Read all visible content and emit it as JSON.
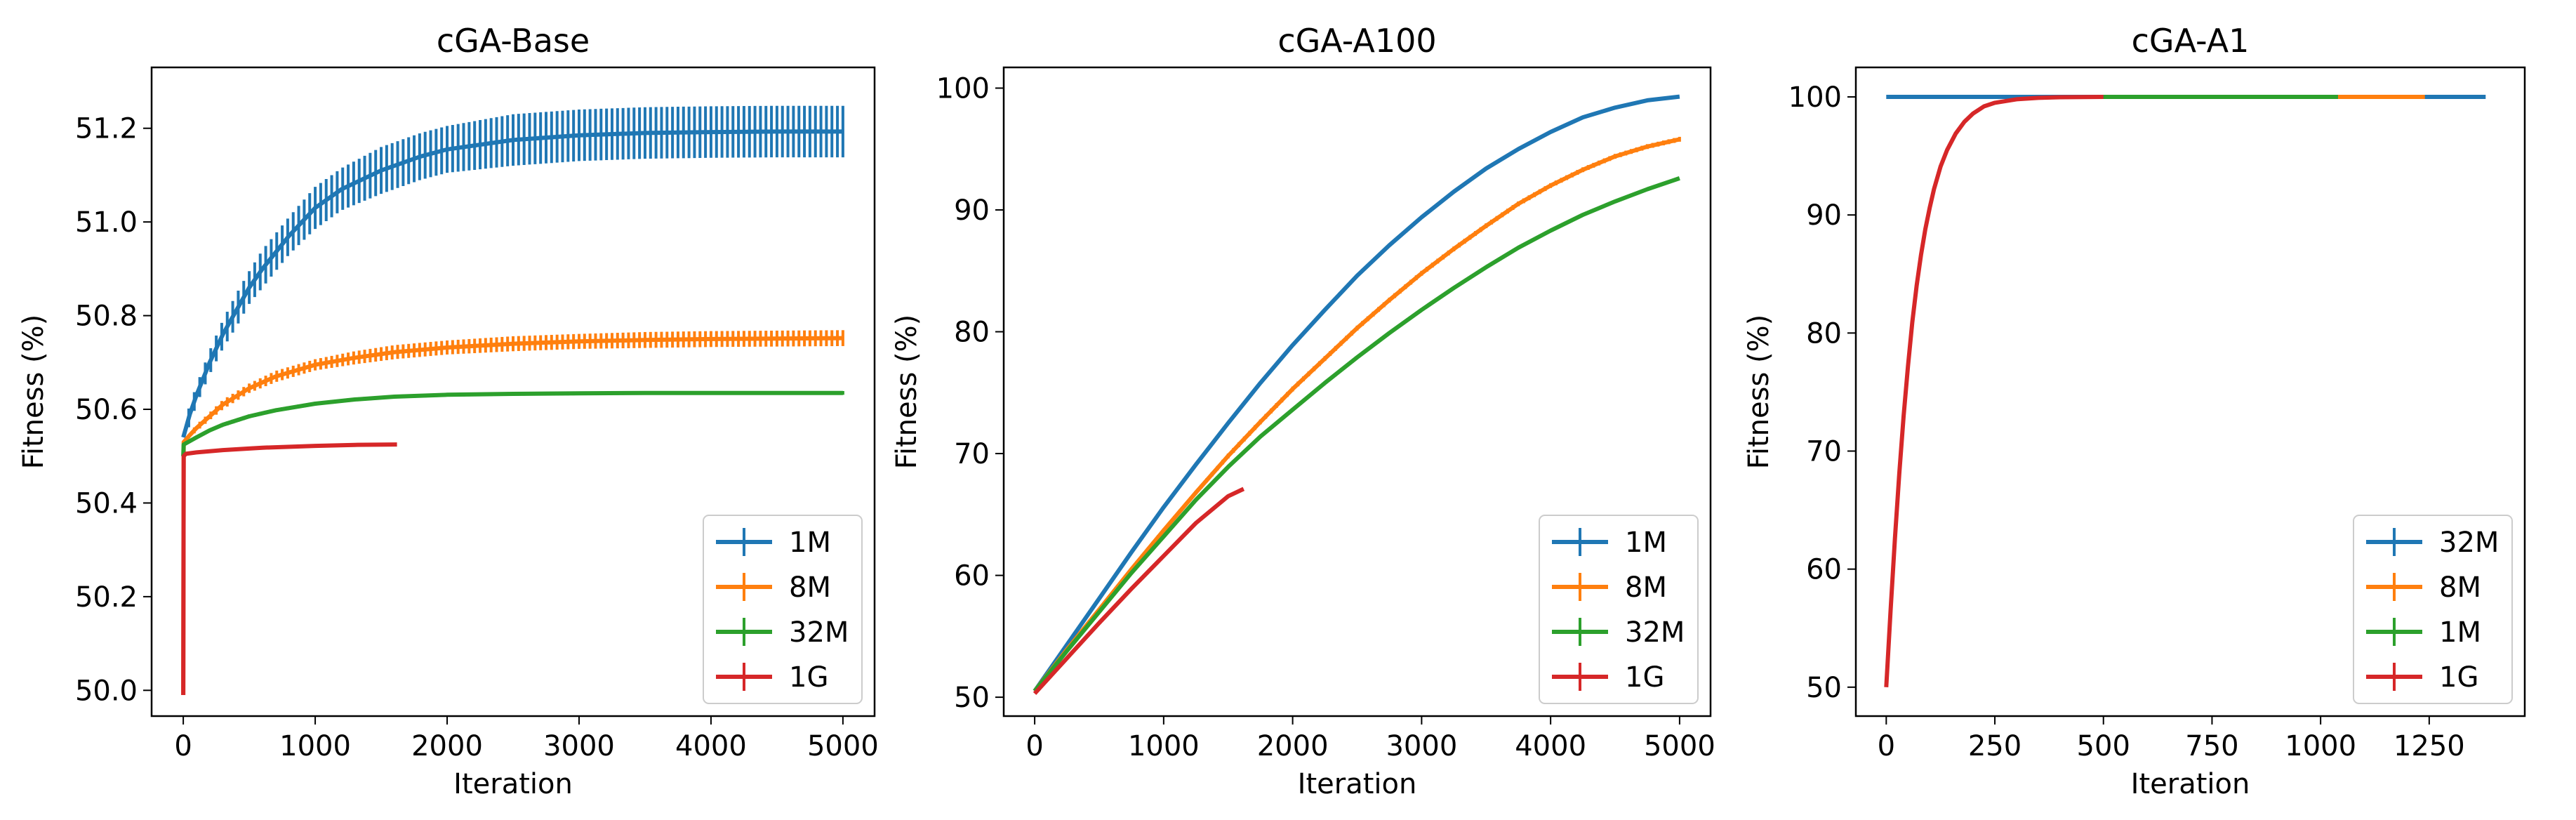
{
  "figure": {
    "panels": 3
  },
  "colors": {
    "blue": "#1f77b4",
    "orange": "#ff7f0e",
    "green": "#2ca02c",
    "red": "#d62728"
  },
  "chart_data": [
    {
      "type": "line",
      "title": "cGA-Base",
      "xlabel": "Iteration",
      "ylabel": "Fitness (%)",
      "xlim": [
        -240,
        5240
      ],
      "ylim": [
        49.945,
        51.33
      ],
      "xticks": [
        0,
        1000,
        2000,
        3000,
        4000,
        5000
      ],
      "xtick_labels": [
        "0",
        "1000",
        "2000",
        "3000",
        "4000",
        "5000"
      ],
      "yticks": [
        50.0,
        50.2,
        50.4,
        50.6,
        50.8,
        51.0,
        51.2
      ],
      "ytick_labels": [
        "50.0",
        "50.2",
        "50.4",
        "50.6",
        "50.8",
        "51.0",
        "51.2"
      ],
      "legend_position": "lower right",
      "series": [
        {
          "name": "1M",
          "color": "#1f77b4",
          "x": [
            0,
            20,
            50,
            100,
            200,
            300,
            400,
            500,
            600,
            800,
            1000,
            1200,
            1500,
            1800,
            2000,
            2500,
            3000,
            3500,
            4000,
            4500,
            5000
          ],
          "y": [
            50.54,
            50.56,
            50.59,
            50.63,
            50.7,
            50.76,
            50.81,
            50.86,
            50.9,
            50.97,
            51.03,
            51.07,
            51.11,
            51.14,
            51.155,
            51.175,
            51.185,
            51.19,
            51.192,
            51.193,
            51.193
          ],
          "err": [
            0.0,
            0.02,
            0.02,
            0.02,
            0.025,
            0.03,
            0.035,
            0.035,
            0.04,
            0.04,
            0.045,
            0.045,
            0.05,
            0.05,
            0.05,
            0.055,
            0.055,
            0.055,
            0.055,
            0.055,
            0.055
          ]
        },
        {
          "name": "8M",
          "color": "#ff7f0e",
          "x": [
            0,
            3,
            50,
            100,
            200,
            300,
            500,
            700,
            1000,
            1300,
            1600,
            2000,
            2500,
            3000,
            3500,
            4000,
            4500,
            5000
          ],
          "y": [
            49.99,
            50.53,
            50.545,
            50.56,
            50.585,
            50.61,
            50.645,
            50.67,
            50.695,
            50.71,
            50.722,
            50.732,
            50.74,
            50.745,
            50.748,
            50.75,
            50.751,
            50.752
          ],
          "err": [
            0.0,
            0.0,
            0.005,
            0.007,
            0.008,
            0.01,
            0.01,
            0.012,
            0.012,
            0.014,
            0.015,
            0.015,
            0.016,
            0.016,
            0.017,
            0.017,
            0.017,
            0.017
          ]
        },
        {
          "name": "32M",
          "color": "#2ca02c",
          "x": [
            0,
            3,
            100,
            200,
            300,
            500,
            700,
            1000,
            1300,
            1600,
            2000,
            2500,
            3000,
            3500,
            4000,
            4500,
            5000
          ],
          "y": [
            50.5,
            50.525,
            50.54,
            50.555,
            50.567,
            50.585,
            50.598,
            50.612,
            50.621,
            50.627,
            50.631,
            50.633,
            50.634,
            50.635,
            50.635,
            50.635,
            50.635
          ],
          "err": [
            0.0,
            0.0,
            0.003,
            0.003,
            0.004,
            0.004,
            0.004,
            0.004,
            0.004,
            0.004,
            0.004,
            0.004,
            0.004,
            0.004,
            0.004,
            0.004,
            0.004
          ]
        },
        {
          "name": "1G",
          "color": "#d62728",
          "x": [
            0,
            3,
            20,
            100,
            300,
            600,
            1000,
            1300,
            1620
          ],
          "y": [
            49.99,
            50.5,
            50.505,
            50.508,
            50.513,
            50.518,
            50.522,
            50.524,
            50.525
          ],
          "err": [
            0.0,
            0.0,
            0.0,
            0.0,
            0.0,
            0.0,
            0.0,
            0.0,
            0.0
          ]
        }
      ]
    },
    {
      "type": "line",
      "title": "cGA-A100",
      "xlabel": "Iteration",
      "ylabel": "Fitness (%)",
      "xlim": [
        -240,
        5240
      ],
      "ylim": [
        48.45,
        101.7
      ],
      "xticks": [
        0,
        1000,
        2000,
        3000,
        4000,
        5000
      ],
      "xtick_labels": [
        "0",
        "1000",
        "2000",
        "3000",
        "4000",
        "5000"
      ],
      "yticks": [
        50,
        60,
        70,
        80,
        90,
        100
      ],
      "ytick_labels": [
        "50",
        "60",
        "70",
        "80",
        "90",
        "100"
      ],
      "legend_position": "lower right",
      "series": [
        {
          "name": "1M",
          "color": "#1f77b4",
          "x": [
            0,
            250,
            500,
            750,
            1000,
            1250,
            1500,
            1750,
            2000,
            2250,
            2500,
            2750,
            3000,
            3250,
            3500,
            3750,
            4000,
            4250,
            4500,
            4750,
            5000
          ],
          "y": [
            50.5,
            54.3,
            58.1,
            61.9,
            65.6,
            69.1,
            72.5,
            75.8,
            78.9,
            81.8,
            84.6,
            87.1,
            89.4,
            91.5,
            93.4,
            95.0,
            96.4,
            97.6,
            98.4,
            99.0,
            99.3
          ],
          "err": [
            0,
            0,
            0,
            0,
            0,
            0,
            0,
            0,
            0,
            0,
            0,
            0,
            0,
            0,
            0,
            0,
            0,
            0,
            0,
            0,
            0
          ]
        },
        {
          "name": "8M",
          "color": "#ff7f0e",
          "x": [
            0,
            250,
            500,
            750,
            1000,
            1250,
            1500,
            1750,
            2000,
            2250,
            2500,
            2750,
            3000,
            3250,
            3500,
            3750,
            4000,
            4250,
            4500,
            4750,
            5000
          ],
          "y": [
            50.5,
            53.9,
            57.2,
            60.5,
            63.7,
            66.8,
            69.8,
            72.6,
            75.3,
            77.8,
            80.3,
            82.6,
            84.8,
            86.8,
            88.7,
            90.5,
            92.0,
            93.3,
            94.4,
            95.2,
            95.8
          ],
          "err": [
            0,
            0.1,
            0.1,
            0.15,
            0.15,
            0.15,
            0.2,
            0.2,
            0.2,
            0.2,
            0.2,
            0.2,
            0.2,
            0.2,
            0.2,
            0.2,
            0.2,
            0.2,
            0.2,
            0.2,
            0.2
          ]
        },
        {
          "name": "32M",
          "color": "#2ca02c",
          "x": [
            0,
            250,
            500,
            750,
            1000,
            1250,
            1500,
            1750,
            2000,
            2250,
            2500,
            2750,
            3000,
            3250,
            3500,
            3750,
            4000,
            4250,
            4500,
            4750,
            5000
          ],
          "y": [
            50.5,
            53.8,
            57.0,
            60.2,
            63.2,
            66.2,
            68.9,
            71.4,
            73.6,
            75.8,
            77.9,
            79.9,
            81.8,
            83.6,
            85.3,
            86.9,
            88.3,
            89.6,
            90.7,
            91.7,
            92.6
          ],
          "err": [
            0,
            0,
            0,
            0,
            0,
            0,
            0,
            0,
            0,
            0,
            0,
            0,
            0,
            0,
            0,
            0,
            0,
            0,
            0,
            0,
            0
          ]
        },
        {
          "name": "1G",
          "color": "#d62728",
          "x": [
            0,
            250,
            500,
            750,
            1000,
            1250,
            1500,
            1620
          ],
          "y": [
            50.3,
            53.2,
            56.1,
            58.9,
            61.6,
            64.3,
            66.5,
            67.1
          ],
          "err": [
            0,
            0,
            0,
            0,
            0,
            0,
            0,
            0
          ]
        }
      ]
    },
    {
      "type": "line",
      "title": "cGA-A1",
      "xlabel": "Iteration",
      "ylabel": "Fitness (%)",
      "xlim": [
        -70,
        1470
      ],
      "ylim": [
        47.55,
        102.5
      ],
      "xticks": [
        0,
        250,
        500,
        750,
        1000,
        1250
      ],
      "xtick_labels": [
        "0",
        "250",
        "500",
        "750",
        "1000",
        "1250"
      ],
      "yticks": [
        50,
        60,
        70,
        80,
        90,
        100
      ],
      "ytick_labels": [
        "50",
        "60",
        "70",
        "80",
        "90",
        "100"
      ],
      "legend_position": "lower right",
      "series": [
        {
          "name": "32M",
          "color": "#1f77b4",
          "x": [
            0,
            1240,
            1380
          ],
          "y": [
            100,
            100,
            100
          ],
          "err": [
            0,
            0,
            0
          ]
        },
        {
          "name": "8M",
          "color": "#ff7f0e",
          "x": [
            1040,
            1240
          ],
          "y": [
            100,
            100
          ],
          "err": [
            0,
            0
          ]
        },
        {
          "name": "1M",
          "color": "#2ca02c",
          "x": [
            500,
            1040
          ],
          "y": [
            100,
            100
          ],
          "err": [
            0,
            0
          ]
        },
        {
          "name": "1G",
          "color": "#d62728",
          "x": [
            0,
            10,
            20,
            30,
            40,
            50,
            60,
            70,
            80,
            90,
            100,
            110,
            125,
            140,
            160,
            180,
            200,
            225,
            250,
            300,
            350,
            400,
            450,
            500
          ],
          "y": [
            50,
            56.5,
            62.6,
            68.1,
            73.0,
            77.2,
            80.9,
            84.0,
            86.6,
            88.8,
            90.6,
            92.2,
            94.1,
            95.5,
            96.9,
            97.9,
            98.6,
            99.2,
            99.5,
            99.8,
            99.92,
            99.97,
            99.99,
            100
          ]
        }
      ]
    }
  ]
}
